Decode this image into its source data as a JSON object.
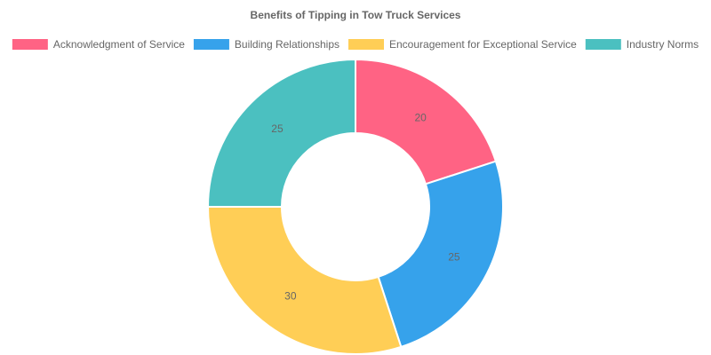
{
  "chart_data": {
    "type": "pie",
    "title": "Benefits of Tipping in Tow Truck Services",
    "categories": [
      "Acknowledgment of Service",
      "Building Relationships",
      "Encouragement for Exceptional Service",
      "Industry Norms"
    ],
    "values": [
      20,
      25,
      30,
      25
    ],
    "colors": [
      "#ff6384",
      "#36a2eb",
      "#ffce56",
      "#4bc0c0"
    ],
    "legend_position": "top",
    "doughnut": true
  }
}
